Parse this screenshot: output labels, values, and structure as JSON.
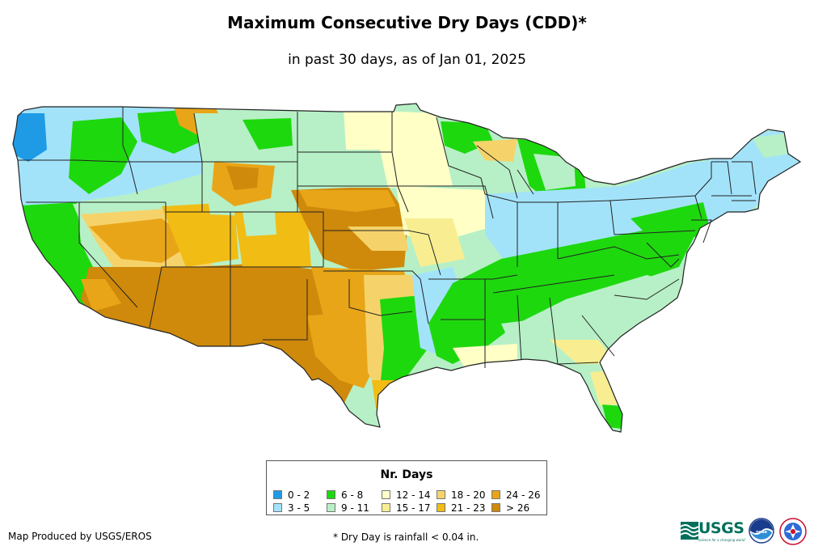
{
  "map": {
    "title": "Maximum Consecutive Dry Days (CDD)*",
    "subtitle": "in past 30 days, as of Jan 01, 2025",
    "legend": {
      "title": "Nr. Days",
      "classes": [
        {
          "label": "0 - 2",
          "color": "#1f9be6"
        },
        {
          "label": "3 - 5",
          "color": "#a3e3fa"
        },
        {
          "label": "6 - 8",
          "color": "#1ed80e"
        },
        {
          "label": "9 - 11",
          "color": "#b7f0c6"
        },
        {
          "label": "12 - 14",
          "color": "#ffffc6"
        },
        {
          "label": "15 - 17",
          "color": "#f8ee91"
        },
        {
          "label": "18 - 20",
          "color": "#f6d36a"
        },
        {
          "label": "21 - 23",
          "color": "#f1bc14"
        },
        {
          "label": "24 - 26",
          "color": "#e9a518"
        },
        {
          "label": "> 26",
          "color": "#cf8a0b"
        }
      ]
    },
    "credit": "Map Produced by USGS/EROS",
    "footnote": "* Dry Day is rainfall < 0.04 in.",
    "logos": [
      {
        "icon": "usgs-logo",
        "text": "USGS",
        "tagline": "science for a changing world"
      },
      {
        "icon": "noaa-logo",
        "text": "noaa"
      },
      {
        "icon": "nws-logo",
        "text": "NATIONAL WEATHER SERVICE"
      }
    ]
  }
}
